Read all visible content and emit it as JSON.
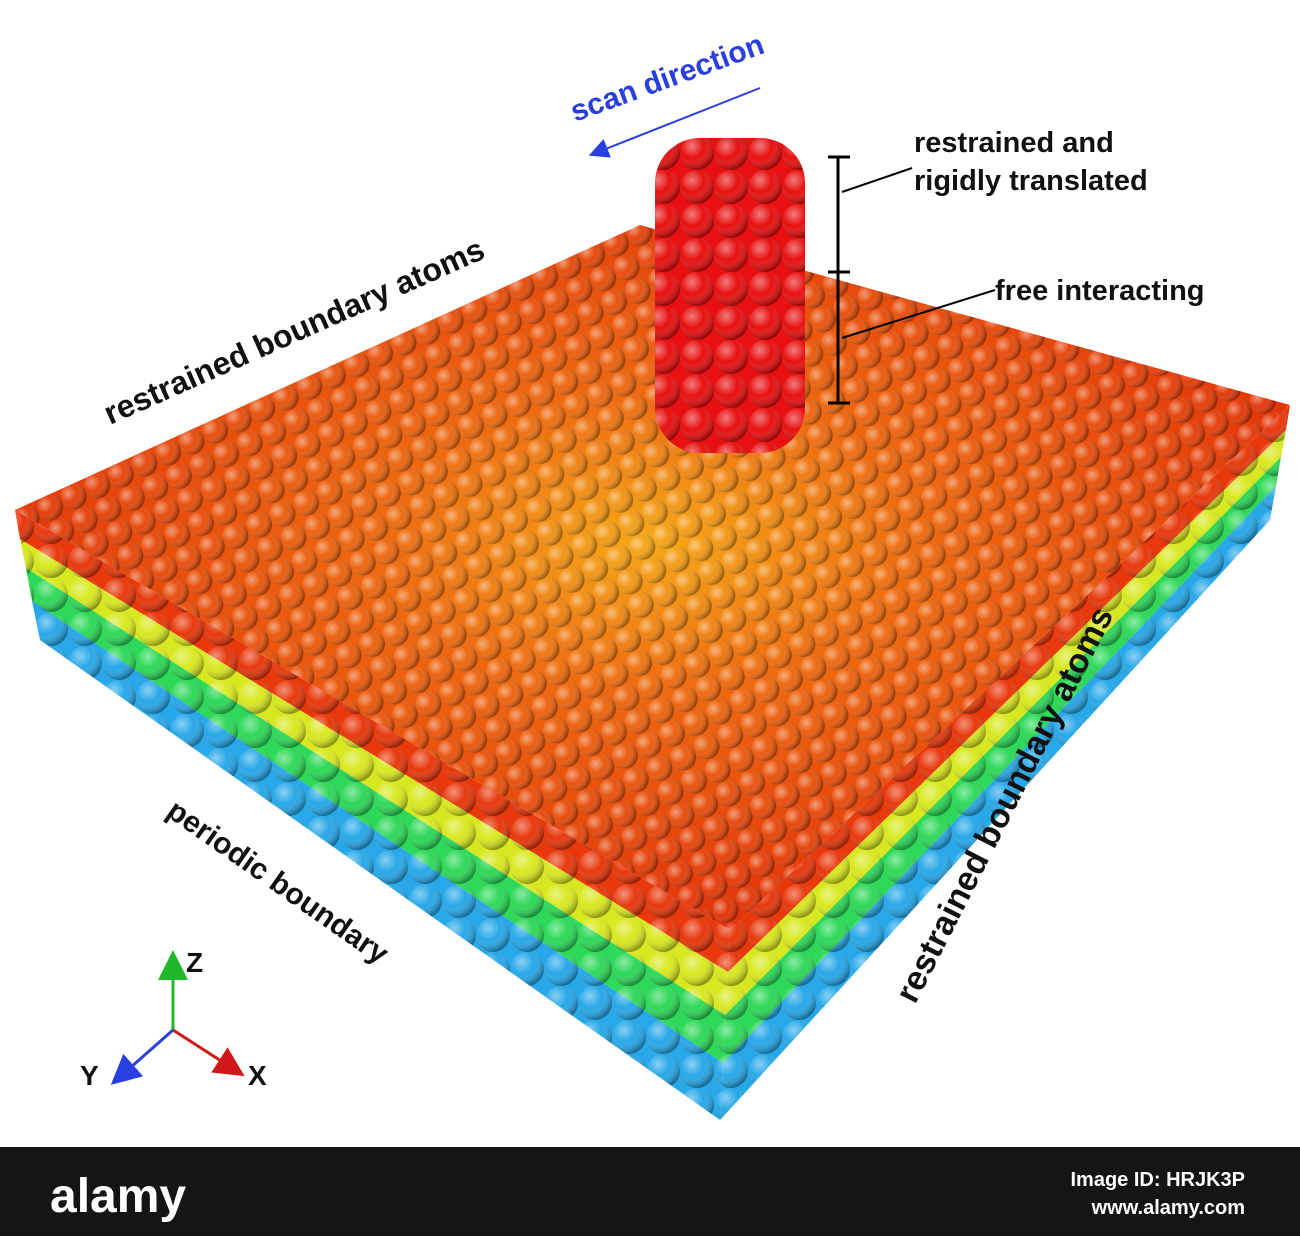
{
  "labels": {
    "scan_direction": "scan direction",
    "tip_upper_line1": "restrained and",
    "tip_upper_line2": "rigidly translated",
    "tip_lower": "free interacting",
    "boundary_back": "restrained boundary atoms",
    "boundary_right": "restrained boundary atoms",
    "boundary_left": "periodic boundary"
  },
  "axes": {
    "z": "Z",
    "y": "Y",
    "x": "X"
  },
  "footer": {
    "brand": "alamy",
    "image_id": "Image ID: HRJK3P",
    "url": "www.alamy.com"
  }
}
